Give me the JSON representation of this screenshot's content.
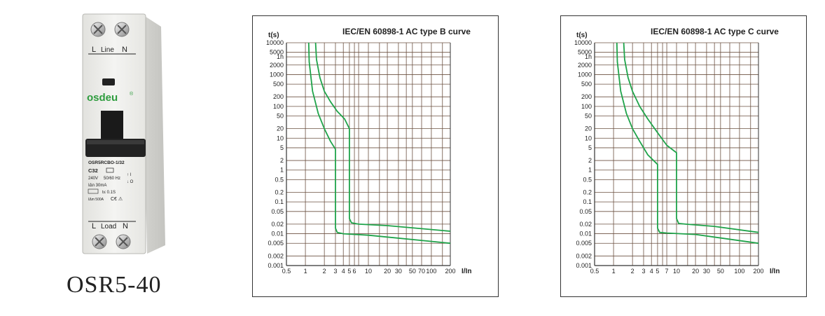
{
  "product": {
    "top_terminal_left": "L",
    "top_terminal_label": "Line",
    "top_terminal_right": "N",
    "brand": "osdeu",
    "model_code": "OSR5RCBO-1/32",
    "rating": "C32",
    "voltage": "240V",
    "frequency": "50/60 Hz",
    "residual_current": "IΔn 30mA",
    "trip_time": "t≤ 0.1S",
    "breaking": "IΔm 500A",
    "bottom_terminal_left": "L",
    "bottom_terminal_label": "Load",
    "bottom_terminal_right": "N",
    "model_caption": "OSR5-40"
  },
  "chart_data": [
    {
      "type": "line",
      "title": "IEC/EN 60898-1 AC type B curve",
      "ylabel": "t(s)",
      "xlabel": "I/In",
      "x_scale": "log",
      "y_scale": "log",
      "xlim": [
        0.5,
        200
      ],
      "ylim": [
        0.001,
        10000
      ],
      "x_tick_labels": [
        {
          "v": 0.5,
          "t": "0.5"
        },
        {
          "v": 1,
          "t": "1"
        },
        {
          "v": 2,
          "t": "2"
        },
        {
          "v": 3,
          "t": "3"
        },
        {
          "v": 4,
          "t": "4"
        },
        {
          "v": 5,
          "t": "5"
        },
        {
          "v": 6,
          "t": "6"
        },
        {
          "v": 10,
          "t": "10"
        },
        {
          "v": 20,
          "t": "20"
        },
        {
          "v": 30,
          "t": "30"
        },
        {
          "v": 50,
          "t": "50"
        },
        {
          "v": 70,
          "t": "70"
        },
        {
          "v": 100,
          "t": "100"
        },
        {
          "v": 200,
          "t": "200"
        }
      ],
      "x_grid": [
        1,
        2,
        3,
        4,
        5,
        6,
        7,
        10,
        15,
        20,
        30,
        40,
        50,
        70,
        100,
        150,
        200
      ],
      "y_tick_labels": [
        {
          "v": 10000,
          "t": "10000"
        },
        {
          "v": 5000,
          "t": "5000"
        },
        {
          "v": 3600,
          "t": "1h"
        },
        {
          "v": 2000,
          "t": "2000"
        },
        {
          "v": 1000,
          "t": "1000"
        },
        {
          "v": 500,
          "t": "500"
        },
        {
          "v": 200,
          "t": "200"
        },
        {
          "v": 100,
          "t": "100"
        },
        {
          "v": 50,
          "t": "50"
        },
        {
          "v": 20,
          "t": "20"
        },
        {
          "v": 10,
          "t": "10"
        },
        {
          "v": 5,
          "t": "5"
        },
        {
          "v": 2,
          "t": "2"
        },
        {
          "v": 1,
          "t": "1"
        },
        {
          "v": 0.5,
          "t": "0.5"
        },
        {
          "v": 0.2,
          "t": "0.2"
        },
        {
          "v": 0.1,
          "t": "0.1"
        },
        {
          "v": 0.05,
          "t": "0.05"
        },
        {
          "v": 0.02,
          "t": "0.02"
        },
        {
          "v": 0.01,
          "t": "0.01"
        },
        {
          "v": 0.005,
          "t": "0.005"
        },
        {
          "v": 0.002,
          "t": "0.002"
        },
        {
          "v": 0.001,
          "t": "0.001"
        }
      ],
      "series": [
        {
          "name": "upper",
          "x": [
            1.45,
            1.5,
            1.7,
            2,
            2.5,
            3.2,
            4.2,
            5.0,
            5.0,
            5.4,
            7,
            20,
            200
          ],
          "y": [
            10000,
            3000,
            800,
            300,
            140,
            70,
            40,
            20,
            0.03,
            0.022,
            0.02,
            0.018,
            0.012
          ]
        },
        {
          "name": "lower",
          "x": [
            1.13,
            1.15,
            1.3,
            1.6,
            2,
            2.5,
            3,
            3.0,
            3.2,
            4,
            10,
            200
          ],
          "y": [
            10000,
            2500,
            300,
            60,
            20,
            8,
            4.5,
            0.015,
            0.011,
            0.01,
            0.009,
            0.005
          ]
        }
      ],
      "color": "#1fa34a"
    },
    {
      "type": "line",
      "title": "IEC/EN 60898-1 AC type C curve",
      "ylabel": "t(s)",
      "xlabel": "I/In",
      "x_scale": "log",
      "y_scale": "log",
      "xlim": [
        0.5,
        200
      ],
      "ylim": [
        0.001,
        10000
      ],
      "x_tick_labels": [
        {
          "v": 0.5,
          "t": "0.5"
        },
        {
          "v": 1,
          "t": "1"
        },
        {
          "v": 2,
          "t": "2"
        },
        {
          "v": 3,
          "t": "3"
        },
        {
          "v": 4,
          "t": "4"
        },
        {
          "v": 5,
          "t": "5"
        },
        {
          "v": 7,
          "t": "7"
        },
        {
          "v": 10,
          "t": "10"
        },
        {
          "v": 20,
          "t": "20"
        },
        {
          "v": 30,
          "t": "30"
        },
        {
          "v": 50,
          "t": "50"
        },
        {
          "v": 100,
          "t": "100"
        },
        {
          "v": 200,
          "t": "200"
        }
      ],
      "x_grid": [
        1,
        2,
        3,
        4,
        5,
        6,
        7,
        10,
        15,
        20,
        30,
        40,
        50,
        70,
        100,
        150,
        200
      ],
      "y_tick_labels": [
        {
          "v": 10000,
          "t": "10000"
        },
        {
          "v": 5000,
          "t": "5000"
        },
        {
          "v": 3600,
          "t": "1h"
        },
        {
          "v": 2000,
          "t": "2000"
        },
        {
          "v": 1000,
          "t": "1000"
        },
        {
          "v": 500,
          "t": "500"
        },
        {
          "v": 200,
          "t": "200"
        },
        {
          "v": 100,
          "t": "100"
        },
        {
          "v": 50,
          "t": "50"
        },
        {
          "v": 20,
          "t": "20"
        },
        {
          "v": 10,
          "t": "10"
        },
        {
          "v": 5,
          "t": "5"
        },
        {
          "v": 2,
          "t": "2"
        },
        {
          "v": 1,
          "t": "1"
        },
        {
          "v": 0.5,
          "t": "0.5"
        },
        {
          "v": 0.2,
          "t": "0.2"
        },
        {
          "v": 0.1,
          "t": "0.1"
        },
        {
          "v": 0.05,
          "t": "0.05"
        },
        {
          "v": 0.02,
          "t": "0.02"
        },
        {
          "v": 0.01,
          "t": "0.01"
        },
        {
          "v": 0.005,
          "t": "0.005"
        },
        {
          "v": 0.002,
          "t": "0.002"
        },
        {
          "v": 0.001,
          "t": "0.001"
        }
      ],
      "series": [
        {
          "name": "upper",
          "x": [
            1.45,
            1.5,
            1.7,
            2,
            2.6,
            3.5,
            5,
            7,
            10,
            10,
            10.8,
            14,
            40,
            200
          ],
          "y": [
            10000,
            3000,
            800,
            300,
            100,
            40,
            15,
            6,
            3.5,
            0.03,
            0.021,
            0.02,
            0.017,
            0.011
          ]
        },
        {
          "name": "lower",
          "x": [
            1.13,
            1.15,
            1.3,
            1.6,
            2,
            2.6,
            3.5,
            5,
            5.0,
            5.4,
            7,
            20,
            200
          ],
          "y": [
            10000,
            2500,
            300,
            60,
            20,
            8,
            3,
            1.5,
            0.015,
            0.011,
            0.0105,
            0.0095,
            0.005
          ]
        }
      ],
      "color": "#1fa34a"
    }
  ]
}
